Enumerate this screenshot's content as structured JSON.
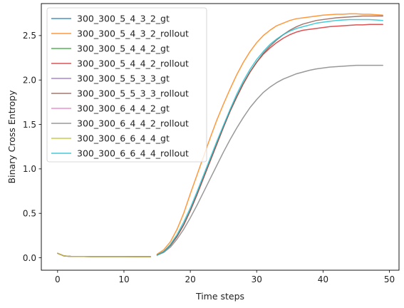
{
  "chart_data": {
    "type": "line",
    "title": "",
    "xlabel": "Time steps",
    "ylabel": "Binary Cross Entropy",
    "xlim": [
      -2.45,
      51.45
    ],
    "ylim": [
      -0.14,
      2.86
    ],
    "xticks": [
      0,
      10,
      20,
      30,
      40,
      50
    ],
    "yticks": [
      0.0,
      0.5,
      1.0,
      1.5,
      2.0,
      2.5
    ],
    "xtick_labels": [
      "0",
      "10",
      "20",
      "30",
      "40",
      "50"
    ],
    "ytick_labels": [
      "0.0",
      "0.5",
      "1.0",
      "1.5",
      "2.0",
      "2.5"
    ],
    "grid": false,
    "legend_position": "top-left",
    "series": [
      {
        "name": "300_300_5_4_3_2_gt",
        "color": "#1f77b4",
        "x": [
          0,
          1,
          2,
          4,
          6,
          8,
          10,
          12,
          14
        ],
        "y": [
          0.05,
          0.02,
          0.015,
          0.014,
          0.013,
          0.013,
          0.013,
          0.012,
          0.012
        ]
      },
      {
        "name": "300_300_5_4_3_2_rollout",
        "color": "#ff7f0e",
        "x": [
          15,
          16,
          17,
          18,
          19,
          20,
          21,
          22,
          23,
          24,
          25,
          26,
          27,
          28,
          29,
          30,
          31,
          32,
          33,
          34,
          35,
          36,
          37,
          38,
          39,
          40,
          41,
          42,
          43,
          44,
          45,
          46,
          47,
          48,
          49
        ],
        "y": [
          0.04,
          0.09,
          0.18,
          0.32,
          0.5,
          0.72,
          0.93,
          1.14,
          1.35,
          1.55,
          1.73,
          1.9,
          2.06,
          2.2,
          2.32,
          2.42,
          2.5,
          2.56,
          2.61,
          2.64,
          2.67,
          2.69,
          2.7,
          2.71,
          2.72,
          2.73,
          2.735,
          2.74,
          2.74,
          2.745,
          2.745,
          2.74,
          2.74,
          2.735,
          2.73
        ]
      },
      {
        "name": "300_300_5_4_4_2_gt",
        "color": "#2ca02c",
        "x": [
          0,
          1,
          2,
          4,
          6,
          8,
          10,
          12,
          14
        ],
        "y": [
          0.05,
          0.02,
          0.015,
          0.014,
          0.013,
          0.013,
          0.013,
          0.012,
          0.012
        ]
      },
      {
        "name": "300_300_5_4_4_2_rollout",
        "color": "#d62728",
        "x": [
          15,
          16,
          17,
          18,
          19,
          20,
          21,
          22,
          23,
          24,
          25,
          26,
          27,
          28,
          29,
          30,
          31,
          32,
          33,
          34,
          35,
          36,
          37,
          38,
          39,
          40,
          41,
          42,
          43,
          44,
          45,
          46,
          47,
          48,
          49
        ],
        "y": [
          0.03,
          0.07,
          0.14,
          0.24,
          0.37,
          0.53,
          0.71,
          0.9,
          1.09,
          1.28,
          1.47,
          1.65,
          1.81,
          1.96,
          2.09,
          2.2,
          2.29,
          2.36,
          2.42,
          2.47,
          2.51,
          2.54,
          2.56,
          2.57,
          2.58,
          2.59,
          2.6,
          2.605,
          2.61,
          2.615,
          2.62,
          2.62,
          2.625,
          2.625,
          2.625
        ]
      },
      {
        "name": "300_300_5_5_3_3_gt",
        "color": "#9467bd",
        "x": [
          0,
          1,
          2,
          4,
          6,
          8,
          10,
          12,
          14
        ],
        "y": [
          0.05,
          0.02,
          0.015,
          0.014,
          0.013,
          0.013,
          0.013,
          0.012,
          0.012
        ]
      },
      {
        "name": "300_300_5_5_3_3_rollout",
        "color": "#8c564b",
        "x": [
          15,
          16,
          17,
          18,
          19,
          20,
          21,
          22,
          23,
          24,
          25,
          26,
          27,
          28,
          29,
          30,
          31,
          32,
          33,
          34,
          35,
          36,
          37,
          38,
          39,
          40,
          41,
          42,
          43,
          44,
          45,
          46,
          47,
          48,
          49
        ],
        "y": [
          0.03,
          0.07,
          0.14,
          0.24,
          0.37,
          0.53,
          0.71,
          0.9,
          1.09,
          1.28,
          1.47,
          1.65,
          1.81,
          1.96,
          2.09,
          2.2,
          2.3,
          2.38,
          2.45,
          2.51,
          2.56,
          2.6,
          2.63,
          2.65,
          2.67,
          2.68,
          2.69,
          2.7,
          2.705,
          2.71,
          2.715,
          2.72,
          2.72,
          2.72,
          2.72
        ]
      },
      {
        "name": "300_300_6_4_4_2_gt",
        "color": "#e377c2",
        "x": [
          0,
          1,
          2,
          4,
          6,
          8,
          10,
          12,
          14
        ],
        "y": [
          0.05,
          0.02,
          0.015,
          0.014,
          0.013,
          0.013,
          0.013,
          0.012,
          0.012
        ]
      },
      {
        "name": "300_300_6_4_4_2_rollout",
        "color": "#7f7f7f",
        "x": [
          15,
          16,
          17,
          18,
          19,
          20,
          21,
          22,
          23,
          24,
          25,
          26,
          27,
          28,
          29,
          30,
          31,
          32,
          33,
          34,
          35,
          36,
          37,
          38,
          39,
          40,
          41,
          42,
          43,
          44,
          45,
          46,
          47,
          48,
          49
        ],
        "y": [
          0.03,
          0.06,
          0.12,
          0.21,
          0.32,
          0.45,
          0.59,
          0.74,
          0.89,
          1.04,
          1.19,
          1.33,
          1.46,
          1.58,
          1.69,
          1.78,
          1.86,
          1.92,
          1.97,
          2.01,
          2.04,
          2.07,
          2.09,
          2.11,
          2.125,
          2.135,
          2.145,
          2.15,
          2.155,
          2.16,
          2.165,
          2.165,
          2.165,
          2.165,
          2.165
        ]
      },
      {
        "name": "300_300_6_6_4_4_gt",
        "color": "#bcbd22",
        "x": [
          0,
          1,
          2,
          4,
          6,
          8,
          10,
          12,
          14
        ],
        "y": [
          0.05,
          0.02,
          0.015,
          0.014,
          0.013,
          0.013,
          0.013,
          0.012,
          0.012
        ]
      },
      {
        "name": "300_300_6_6_4_4_rollout",
        "color": "#17becf",
        "x": [
          15,
          16,
          17,
          18,
          19,
          20,
          21,
          22,
          23,
          24,
          25,
          26,
          27,
          28,
          29,
          30,
          31,
          32,
          33,
          34,
          35,
          36,
          37,
          38,
          39,
          40,
          41,
          42,
          43,
          44,
          45,
          46,
          47,
          48,
          49
        ],
        "y": [
          0.03,
          0.07,
          0.15,
          0.26,
          0.4,
          0.56,
          0.74,
          0.93,
          1.12,
          1.31,
          1.49,
          1.67,
          1.84,
          1.99,
          2.12,
          2.23,
          2.32,
          2.4,
          2.46,
          2.51,
          2.55,
          2.58,
          2.6,
          2.62,
          2.64,
          2.65,
          2.66,
          2.67,
          2.675,
          2.68,
          2.68,
          2.68,
          2.68,
          2.675,
          2.67
        ]
      }
    ]
  }
}
